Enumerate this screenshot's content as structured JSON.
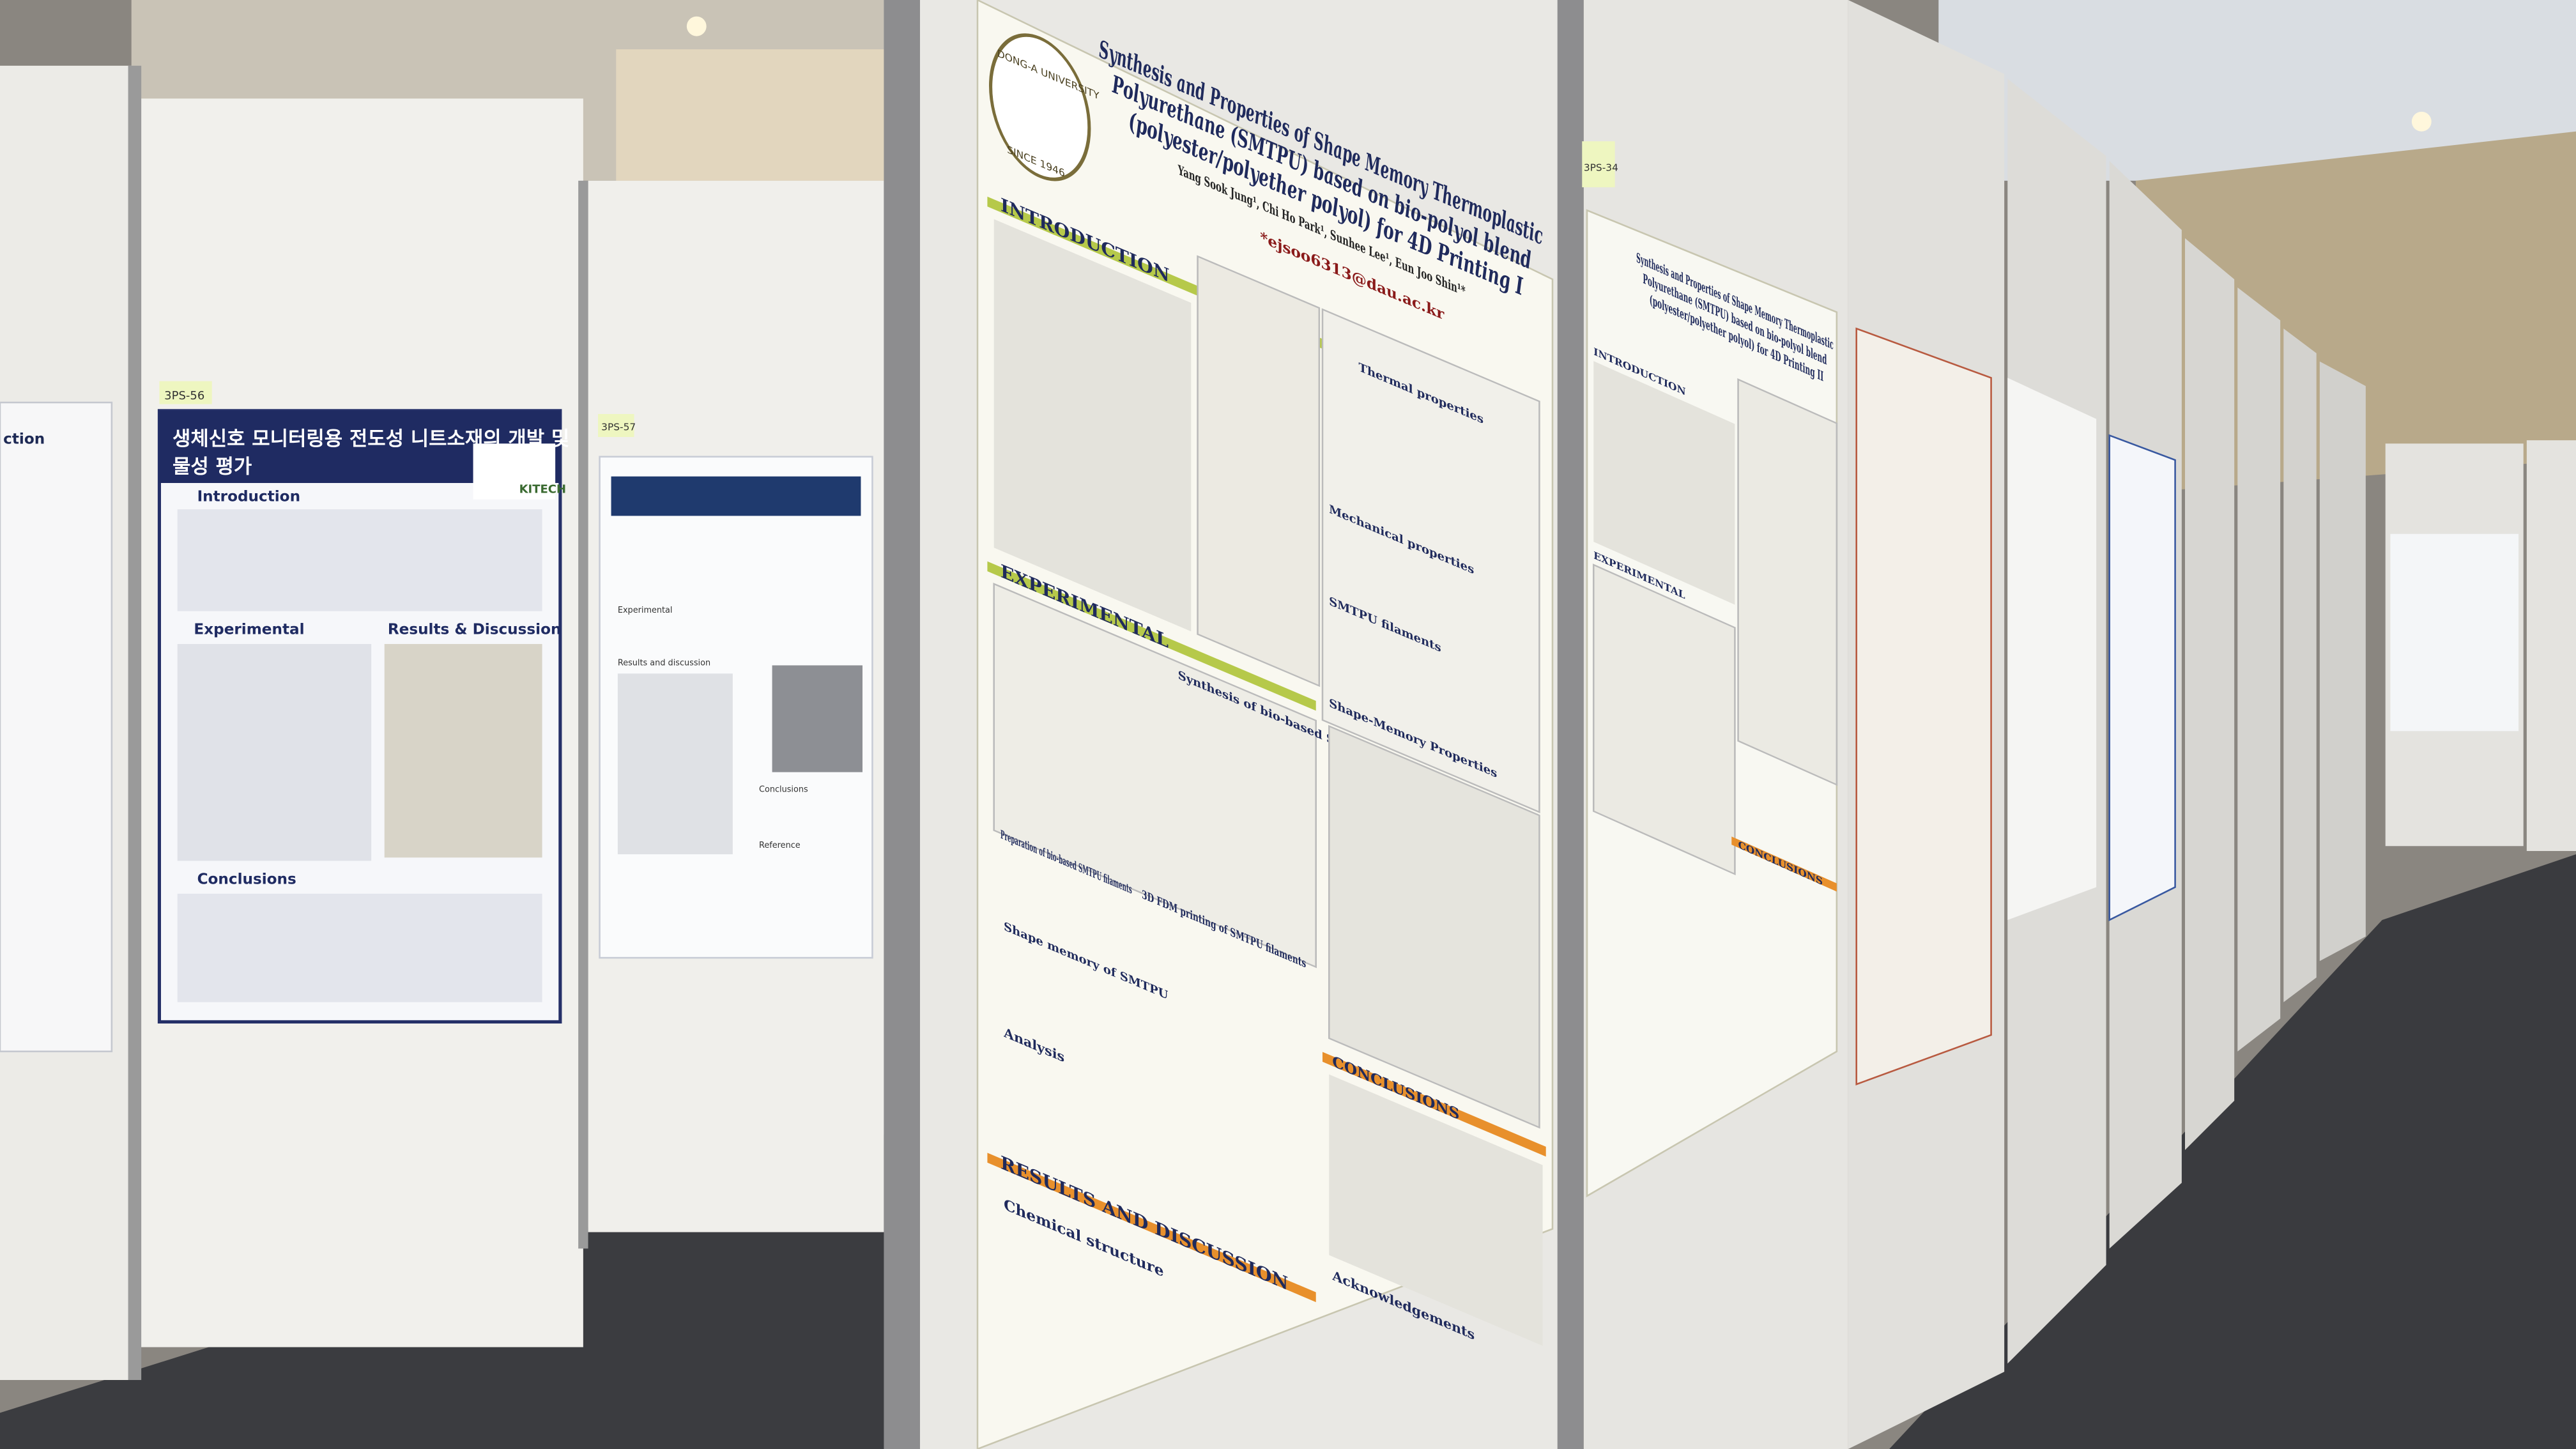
{
  "main_poster": {
    "logo": {
      "name": "DONG-A UNIVERSITY",
      "since": "SINCE 1946"
    },
    "title_lines": [
      "Synthesis and Properties of Shape Memory Thermoplastic",
      "Polyurethane (SMTPU) based on bio-polyol blend",
      "(polyester/polyether polyol) for 4D Printing I"
    ],
    "authors": "Yang Sook Jung¹, Chi Ho Park¹, Sunhee Lee¹, Eun Joo Shin¹*",
    "email": "*ejsoo6313@dau.ac.kr",
    "sections": [
      "INTRODUCTION",
      "EXPERIMENTAL",
      "CONCLUSIONS",
      "RESULTS AND DISCUSSION",
      "Acknowledgements"
    ],
    "subheads": [
      "Synthesis of bio-based SMTPU",
      "Preparation of bio-based SMTPU filaments",
      "3D FDM printing of SMTPU filaments",
      "Shape memory of SMTPU",
      "Analysis",
      "Chemical structure",
      "Thermal properties",
      "Mechanical properties",
      "SMTPU filaments",
      "Shape-Memory Properties"
    ]
  },
  "second_poster": {
    "tag": "3PS-34",
    "title_lines": [
      "Synthesis and Properties of Shape Memory Thermoplastic",
      "Polyurethane (SMTPU) based on bio-polyol blend",
      "(polyester/polyether polyol) for 4D Printing II"
    ],
    "sections": [
      "INTRODUCTION",
      "EXPERIMENTAL",
      "CONCLUSIONS"
    ]
  },
  "left_poster": {
    "tag": "3PS-56",
    "title_lines": [
      "생체신호 모니터링용 전도성 니트소재의 개발 및",
      "물성 평가"
    ],
    "logo": "KITECH",
    "sections": [
      "Introduction",
      "Experimental",
      "Results & Discussion",
      "Conclusions"
    ]
  },
  "middle_poster": {
    "tag": "3PS-57",
    "sections": [
      "Experimental",
      "Results and discussion",
      "Conclusions",
      "Reference"
    ]
  },
  "far_left_poster": {
    "fragment": "ction"
  }
}
